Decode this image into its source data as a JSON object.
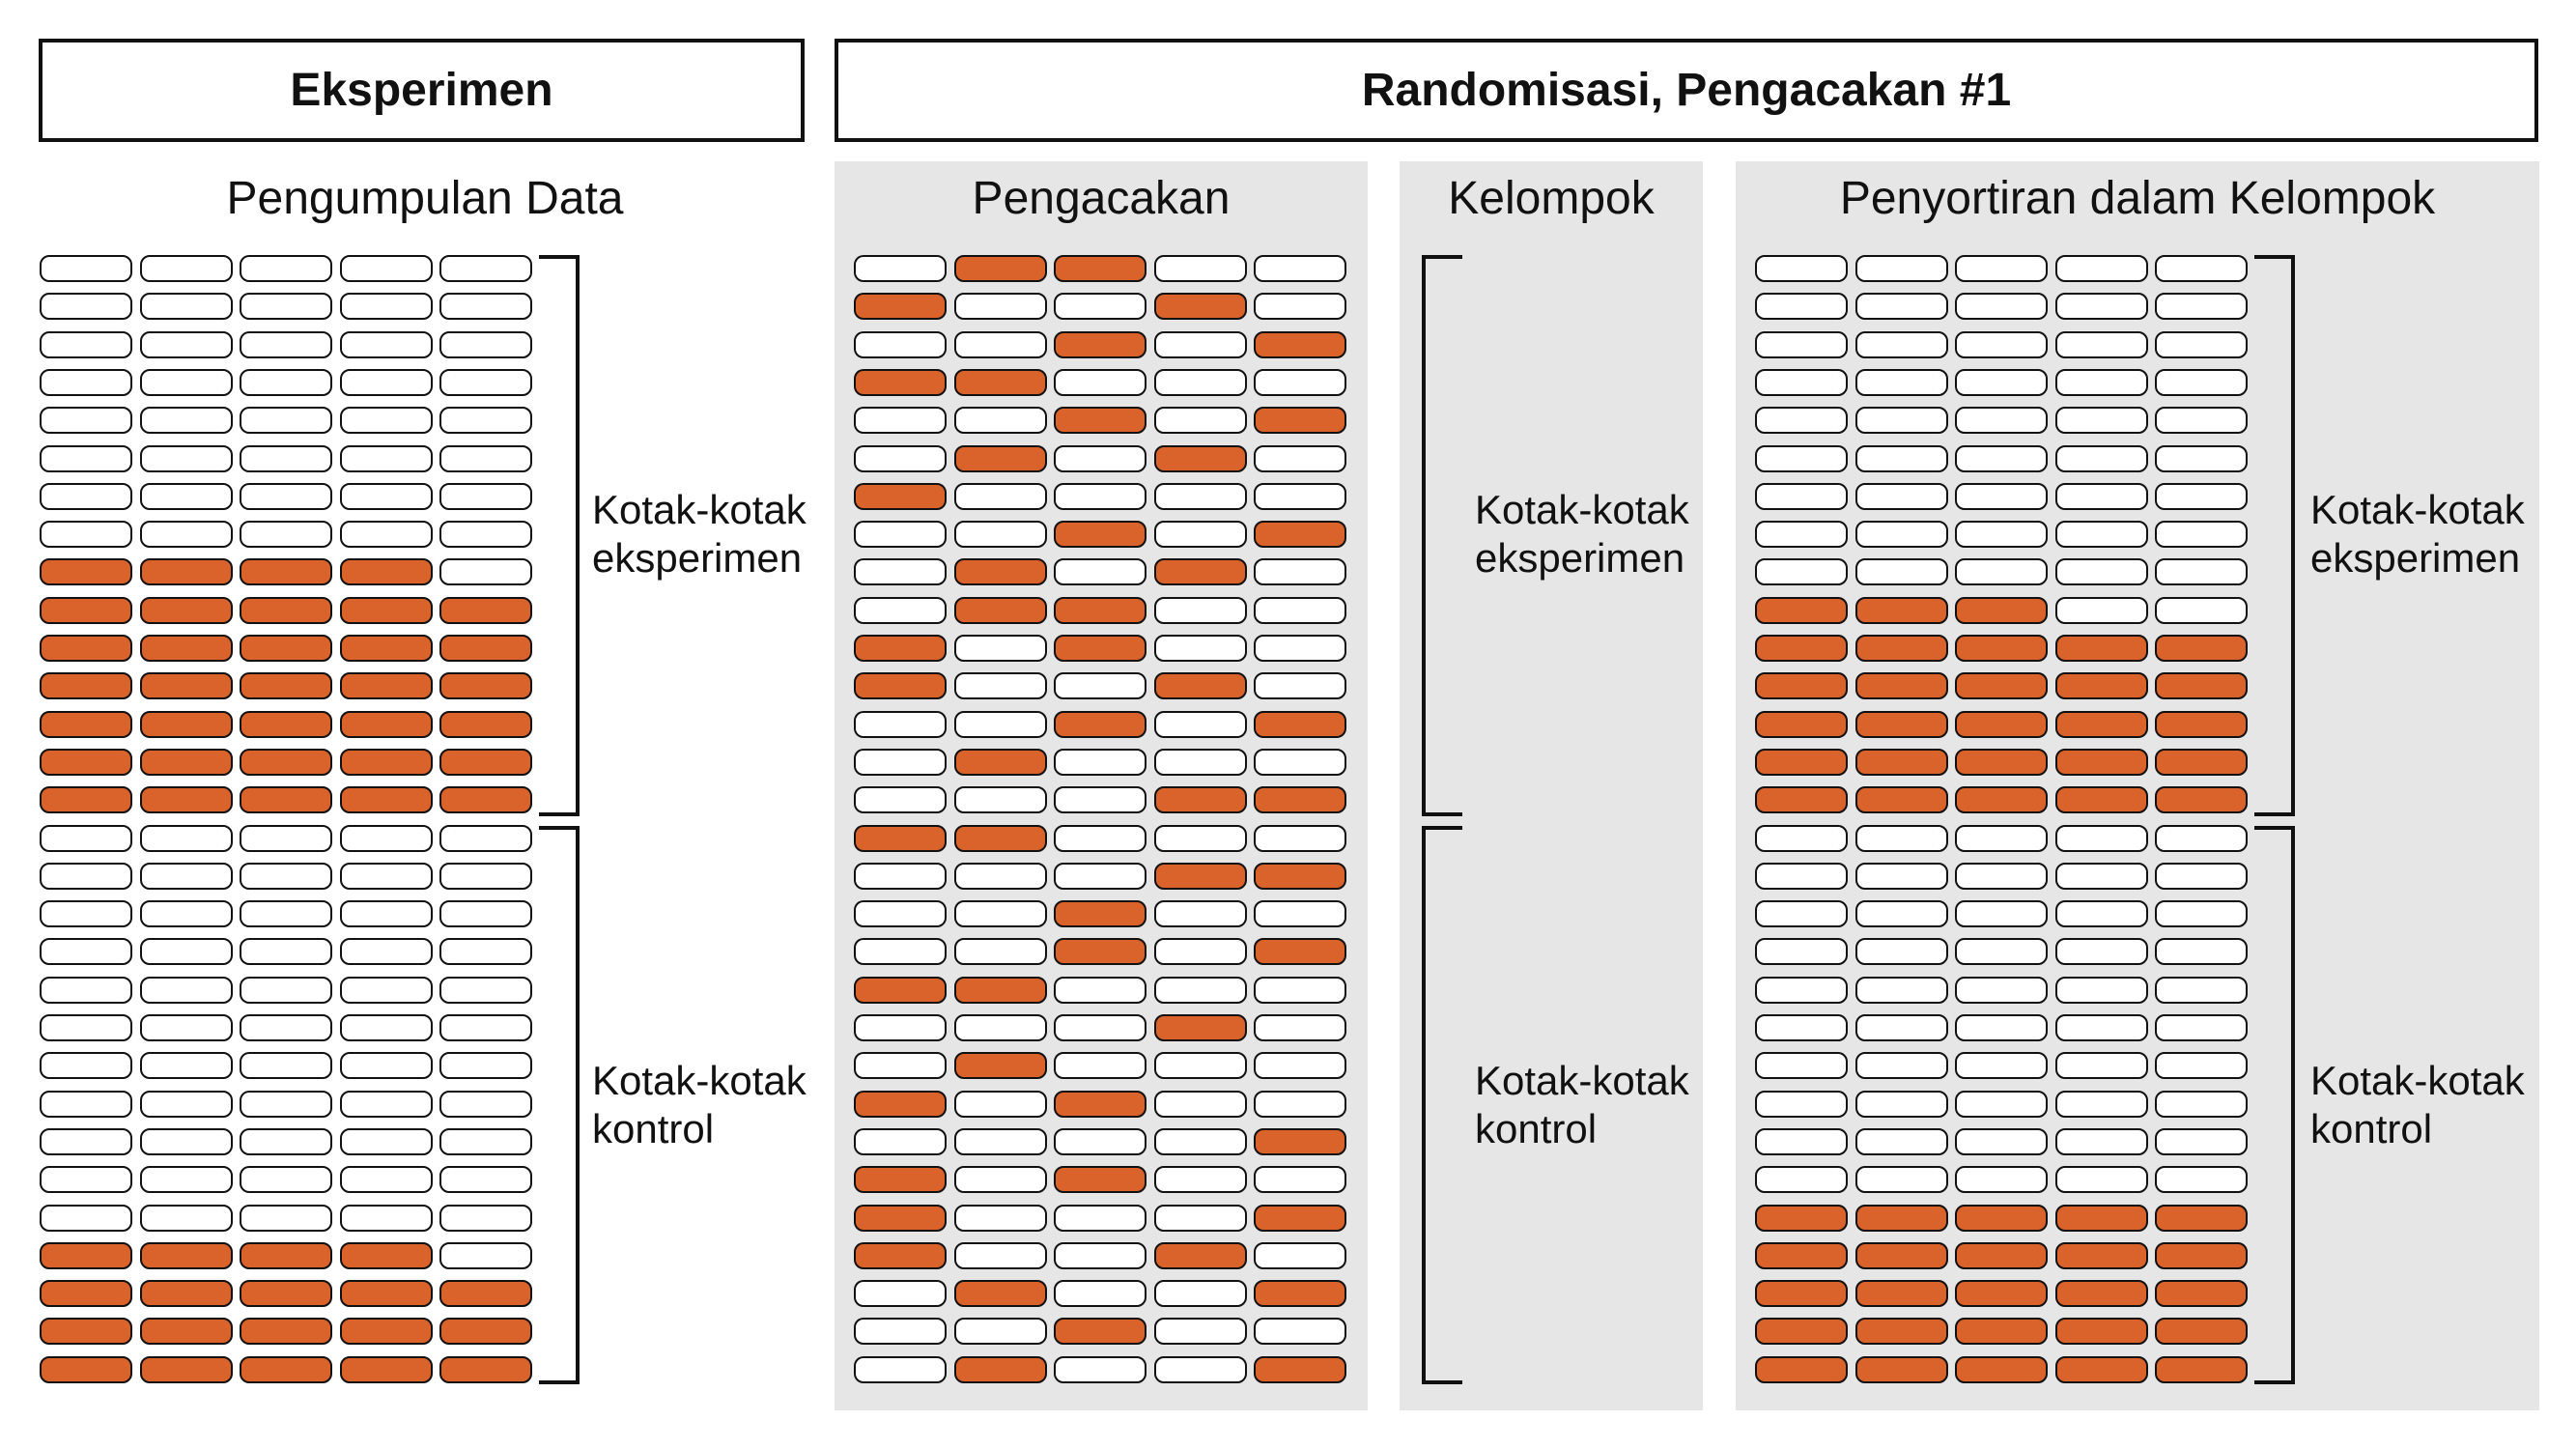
{
  "colors": {
    "accent": "#d9632a",
    "panel": "#e5e6e5",
    "empty": "#ffffff",
    "stroke": "#111111"
  },
  "headers": {
    "experiment": "Eksperimen",
    "randomization": "Randomisasi, Pengacakan #1"
  },
  "sections": {
    "data_collection": "Pengumpulan Data",
    "shuffling": "Pengacakan",
    "groups": "Kelompok",
    "sorting": "Penyortiran dalam Kelompok"
  },
  "labels": {
    "experimental_line1": "Kotak-kotak",
    "experimental_line2": "eksperimen",
    "control_line1": "Kotak-kotak",
    "control_line2": "kontrol"
  },
  "grids": {
    "data_collection": [
      "00000",
      "00000",
      "00000",
      "00000",
      "00000",
      "00000",
      "00000",
      "00000",
      "11110",
      "11111",
      "11111",
      "11111",
      "11111",
      "11111",
      "11111",
      "00000",
      "00000",
      "00000",
      "00000",
      "00000",
      "00000",
      "00000",
      "00000",
      "00000",
      "00000",
      "00000",
      "11110",
      "11111",
      "11111",
      "11111"
    ],
    "shuffling": [
      "01100",
      "10010",
      "00101",
      "11000",
      "00101",
      "01010",
      "10000",
      "00101",
      "01010",
      "01100",
      "10100",
      "10010",
      "00101",
      "01000",
      "00011",
      "11000",
      "00011",
      "00100",
      "00101",
      "11000",
      "00010",
      "01000",
      "10100",
      "00001",
      "10100",
      "10001",
      "10010",
      "01001",
      "00100",
      "01001"
    ],
    "sorting": [
      "00000",
      "00000",
      "00000",
      "00000",
      "00000",
      "00000",
      "00000",
      "00000",
      "00000",
      "11100",
      "11111",
      "11111",
      "11111",
      "11111",
      "11111",
      "00000",
      "00000",
      "00000",
      "00000",
      "00000",
      "00000",
      "00000",
      "00000",
      "00000",
      "00000",
      "11111",
      "11111",
      "11111",
      "11111",
      "11111"
    ]
  }
}
